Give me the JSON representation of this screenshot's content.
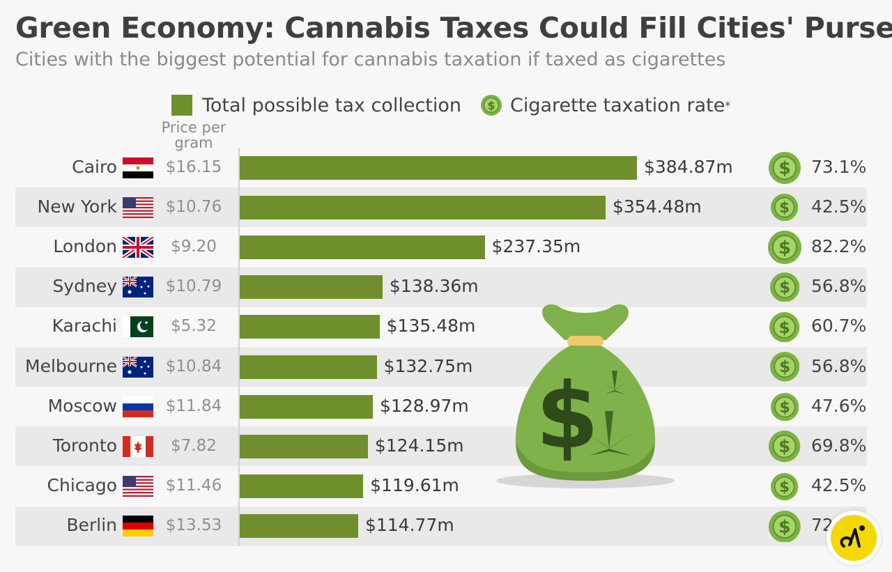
{
  "title": "Green Economy: Cannabis Taxes Could Fill Cities' Purses",
  "subtitle": "Cities with the biggest potential for cannabis taxation if taxed as cigarettes",
  "legend": {
    "bar_label": "Total possible tax collection",
    "rate_label": "Cigarette taxation rate",
    "rate_marker": "*"
  },
  "price_header": "Price per gram",
  "colors": {
    "bar": "#6e8f2c",
    "coin": "#7cb342",
    "coin_light": "#a5d46a",
    "background": "#f7f7f7",
    "band": "#e9e9e9"
  },
  "chart_data": {
    "type": "bar",
    "orientation": "horizontal",
    "title": "Green Economy: Cannabis Taxes Could Fill Cities' Purses",
    "subtitle": "Cities with the biggest potential for cannabis taxation if taxed as cigarettes",
    "categories": [
      "Cairo",
      "New York",
      "London",
      "Sydney",
      "Karachi",
      "Melbourne",
      "Moscow",
      "Toronto",
      "Chicago",
      "Berlin"
    ],
    "series": [
      {
        "name": "Total possible tax collection",
        "values": [
          384.87,
          354.48,
          237.35,
          138.36,
          135.48,
          132.75,
          128.97,
          124.15,
          119.61,
          114.77
        ]
      }
    ],
    "value_labels": [
      "$384.87m",
      "$354.48m",
      "$237.35m",
      "$138.36m",
      "$135.48m",
      "$132.75m",
      "$128.97m",
      "$124.15m",
      "$119.61m",
      "$114.77m"
    ],
    "price_per_gram": [
      "$16.15",
      "$10.76",
      "$9.20",
      "$10.79",
      "$5.32",
      "$10.84",
      "$11.84",
      "$7.82",
      "$11.46",
      "$13.53"
    ],
    "cigarette_tax_rate": [
      "73.1%",
      "42.5%",
      "82.2%",
      "56.8%",
      "60.7%",
      "56.8%",
      "47.6%",
      "69.8%",
      "42.5%",
      "72"
    ],
    "cigarette_tax_rate_values": [
      73.1,
      42.5,
      82.2,
      56.8,
      60.7,
      56.8,
      47.6,
      69.8,
      42.5,
      72
    ],
    "flags": [
      "egypt",
      "usa",
      "uk",
      "australia",
      "pakistan",
      "australia",
      "russia",
      "canada",
      "usa",
      "germany"
    ],
    "legend_position": "top",
    "grid": false
  }
}
